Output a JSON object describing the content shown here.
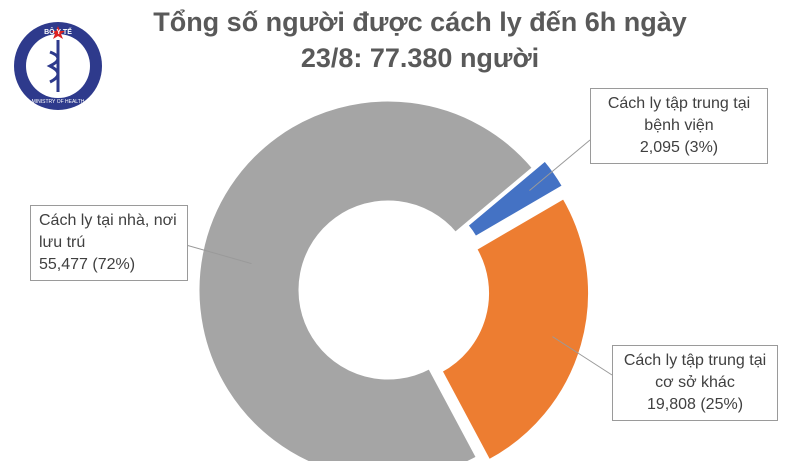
{
  "logo": {
    "top_text": "BỘ Y TẾ",
    "bottom_text": "MINISTRY OF HEALTH"
  },
  "chart_data": {
    "type": "donut",
    "title": "Tổng số người được cách ly đến 6h ngày 23/8: 77.380 người",
    "categories": [
      "Cách ly tập trung tại bệnh viện",
      "Cách ly tập trung tại cơ sở khác",
      "Cách ly tại nhà, nơi lưu trú"
    ],
    "values": [
      2095,
      19808,
      55477
    ],
    "value_labels": [
      "2,095 (3%)",
      "19,808 (25%)",
      "55,477 (72%)"
    ],
    "colors": [
      "#4472c4",
      "#ed7d31",
      "#a5a5a5"
    ]
  }
}
